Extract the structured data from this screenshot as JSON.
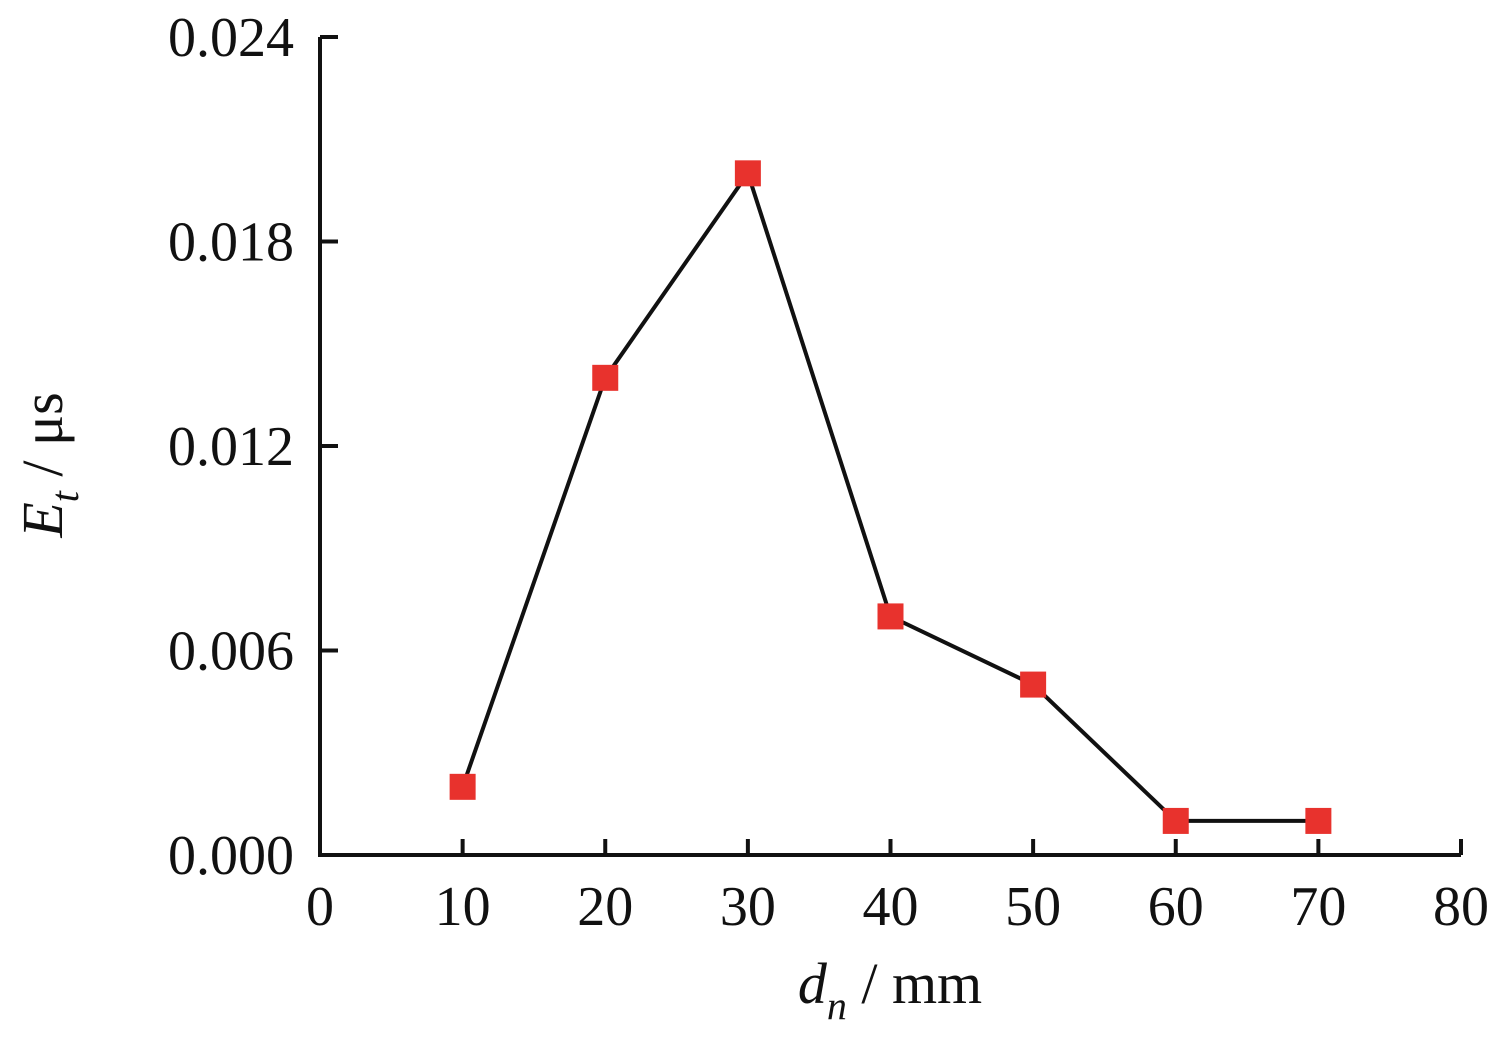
{
  "chart_data": {
    "type": "line",
    "x": [
      10,
      20,
      30,
      40,
      50,
      60,
      70
    ],
    "series": [
      {
        "values": [
          0.002,
          0.014,
          0.02,
          0.007,
          0.005,
          0.001,
          0.001
        ]
      }
    ],
    "xlim": [
      0,
      80
    ],
    "ylim": [
      0,
      0.024
    ],
    "xticks": [
      "0",
      "10",
      "20",
      "30",
      "40",
      "50",
      "60",
      "70",
      "80"
    ],
    "yticks": [
      "0.000",
      "0.006",
      "0.012",
      "0.018",
      "0.024"
    ],
    "xlabel": {
      "var": "d",
      "sub": "n",
      "unit": " / mm"
    },
    "ylabel": {
      "var": "E",
      "sub": "t",
      "unit": " / μs"
    },
    "grid": false,
    "colors": {
      "line": "#111111",
      "marker": "#e8322d",
      "axis": "#111111"
    }
  }
}
